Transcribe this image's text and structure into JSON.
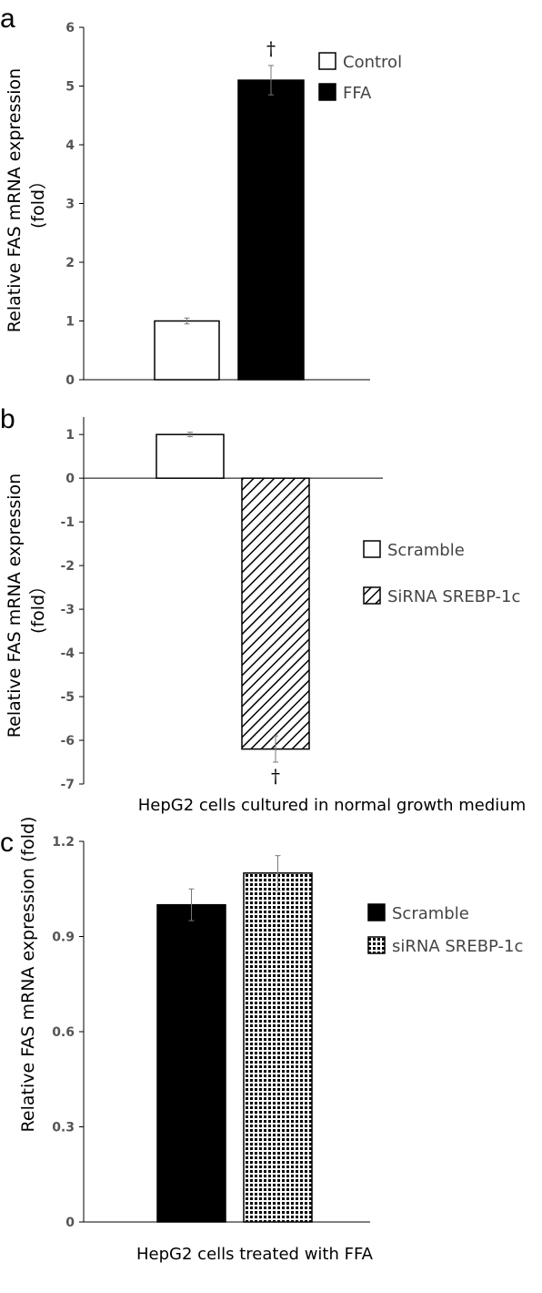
{
  "chart_data": [
    {
      "panel": "a",
      "type": "bar",
      "ylabel": "Relative FAS mRNA expression (fold）",
      "ylim": [
        0,
        6
      ],
      "yticks": [
        0,
        1,
        2,
        3,
        4,
        5,
        6
      ],
      "ytick_labels": [
        "0",
        "1",
        "2",
        "3",
        "4",
        "5",
        "6"
      ],
      "series": [
        {
          "name": "Control",
          "style": "white",
          "value": 1.0,
          "error": 0.05
        },
        {
          "name": "FFA",
          "style": "black",
          "value": 5.1,
          "error": 0.25,
          "significance": "†"
        }
      ],
      "xlabel": ""
    },
    {
      "panel": "b",
      "type": "bar",
      "ylabel": "Relative FAS mRNA expression (fold）",
      "ylim": [
        -7,
        1.4
      ],
      "yticks": [
        1,
        0,
        -1,
        -2,
        -3,
        -4,
        -5,
        -6,
        -7
      ],
      "ytick_labels": [
        "1",
        "0",
        "-1",
        "-2",
        "-3",
        "-4",
        "-5",
        "-6",
        "-7"
      ],
      "series": [
        {
          "name": "Scramble",
          "style": "white",
          "value": 1.0,
          "error": 0.05
        },
        {
          "name": "SiRNA SREBP-1c",
          "style": "hatch",
          "value": -6.2,
          "error": 0.3,
          "significance": "†"
        }
      ],
      "xlabel": "HepG2 cells cultured in normal growth medium"
    },
    {
      "panel": "c",
      "type": "bar",
      "ylabel": "Relative FAS mRNA expression (fold)",
      "ylim": [
        0,
        1.2
      ],
      "yticks": [
        0,
        0.3,
        0.6,
        0.9,
        1.2
      ],
      "ytick_labels": [
        "0",
        "0.3",
        "0.6",
        "0.9",
        "1.2"
      ],
      "series": [
        {
          "name": "Scramble",
          "style": "black",
          "value": 1.0,
          "error": 0.05
        },
        {
          "name": "siRNA SREBP-1c",
          "style": "check",
          "value": 1.1,
          "error": 0.055
        }
      ],
      "xlabel": "HepG2 cells treated with FFA"
    }
  ]
}
